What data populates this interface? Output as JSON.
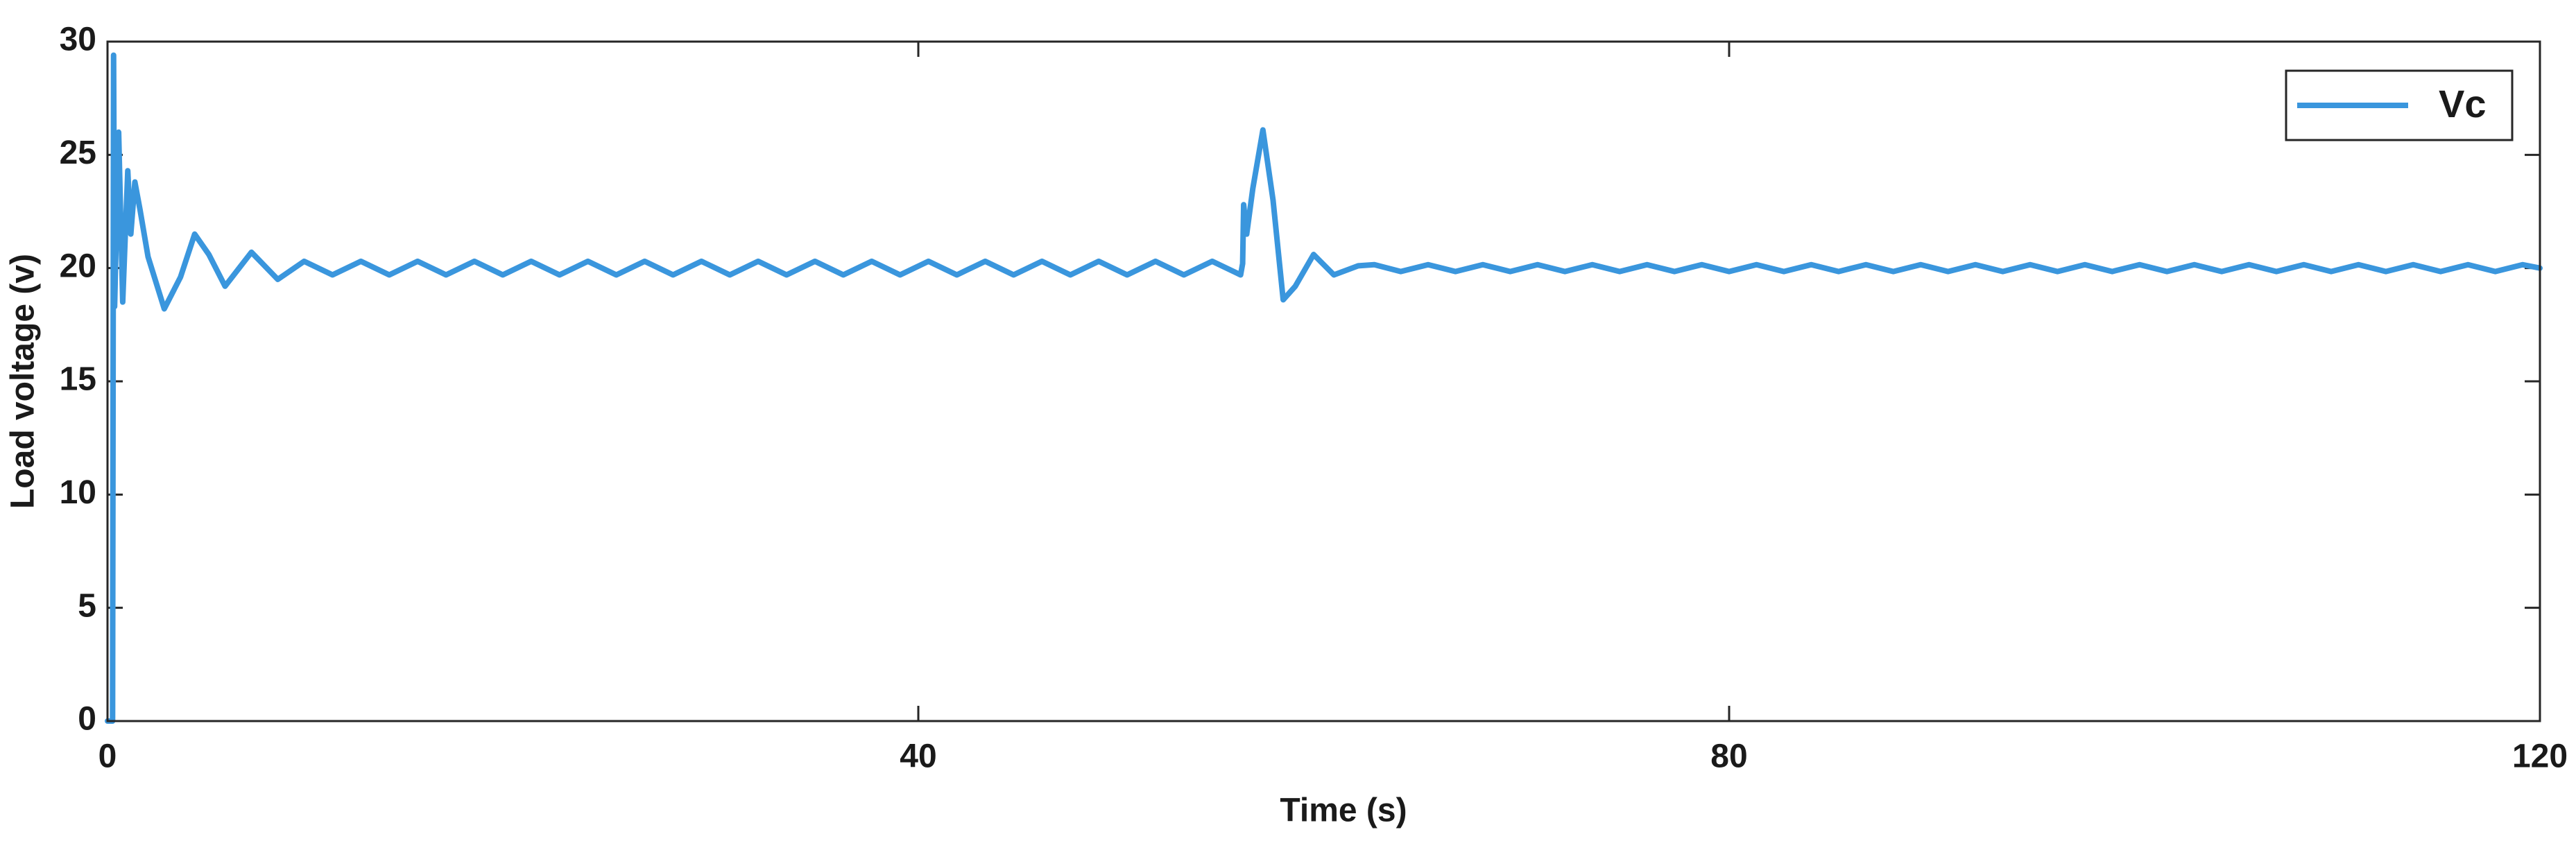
{
  "chart_data": {
    "type": "line",
    "xlabel": "Time (s)",
    "ylabel": "Load voltage (v)",
    "xlim": [
      0,
      120
    ],
    "ylim": [
      0,
      30
    ],
    "xticks": [
      0,
      40,
      80,
      120
    ],
    "yticks": [
      0,
      5,
      10,
      15,
      20,
      25,
      30
    ],
    "legend": "upper right",
    "series": [
      {
        "name": "Vc",
        "color": "#3a96dd",
        "x": [
          0,
          0.25,
          0.3,
          0.35,
          0.55,
          0.75,
          1.0,
          1.15,
          1.35,
          1.6,
          2.0,
          2.8,
          3.6,
          4.3,
          5.0,
          5.8,
          7.1,
          8.4,
          9.7,
          11.1,
          12.5,
          13.9,
          15.3,
          16.7,
          18.1,
          19.5,
          20.9,
          22.3,
          23.7,
          25.1,
          26.5,
          27.9,
          29.3,
          30.7,
          32.1,
          33.5,
          34.9,
          36.3,
          37.7,
          39.1,
          40.5,
          41.9,
          43.3,
          44.7,
          46.1,
          47.5,
          48.9,
          50.3,
          51.7,
          53.1,
          54.5,
          55.9,
          56.0,
          56.05,
          56.2,
          56.5,
          57.0,
          57.5,
          58.0,
          58.6,
          59.5,
          60.5,
          61.7,
          62.5,
          63.8,
          65.15,
          66.5,
          67.85,
          69.2,
          70.55,
          71.9,
          73.25,
          74.6,
          75.95,
          77.3,
          78.65,
          80.0,
          81.35,
          82.7,
          84.05,
          85.4,
          86.75,
          88.1,
          89.45,
          90.8,
          92.15,
          93.5,
          94.85,
          96.2,
          97.55,
          98.9,
          100.25,
          101.6,
          102.95,
          104.3,
          105.65,
          107.0,
          108.35,
          109.7,
          111.05,
          112.4,
          113.75,
          115.1,
          116.45,
          117.8,
          119.15,
          120
        ],
        "values": [
          0,
          0,
          29.4,
          18.3,
          26,
          18.5,
          24.3,
          21.5,
          23.8,
          22.6,
          20.5,
          18.2,
          19.6,
          21.5,
          20.6,
          19.2,
          20.7,
          19.5,
          20.3,
          19.7,
          20.3,
          19.7,
          20.3,
          19.7,
          20.3,
          19.7,
          20.3,
          19.7,
          20.3,
          19.7,
          20.3,
          19.7,
          20.3,
          19.7,
          20.3,
          19.7,
          20.3,
          19.7,
          20.3,
          19.7,
          20.3,
          19.7,
          20.3,
          19.7,
          20.3,
          19.7,
          20.3,
          19.7,
          20.3,
          19.7,
          20.3,
          19.7,
          20.2,
          22.8,
          21.5,
          23.5,
          26.1,
          23.0,
          18.6,
          19.2,
          20.6,
          19.7,
          20.1,
          20.15,
          19.85,
          20.15,
          19.85,
          20.15,
          19.85,
          20.15,
          19.85,
          20.15,
          19.85,
          20.15,
          19.85,
          20.15,
          19.85,
          20.15,
          19.85,
          20.15,
          19.85,
          20.15,
          19.85,
          20.15,
          19.85,
          20.15,
          19.85,
          20.15,
          19.85,
          20.15,
          19.85,
          20.15,
          19.85,
          20.15,
          19.85,
          20.15,
          19.85,
          20.15,
          19.85,
          20.15,
          19.85,
          20.15,
          19.85,
          20.15,
          19.85,
          20.15,
          20.0
        ]
      }
    ]
  }
}
